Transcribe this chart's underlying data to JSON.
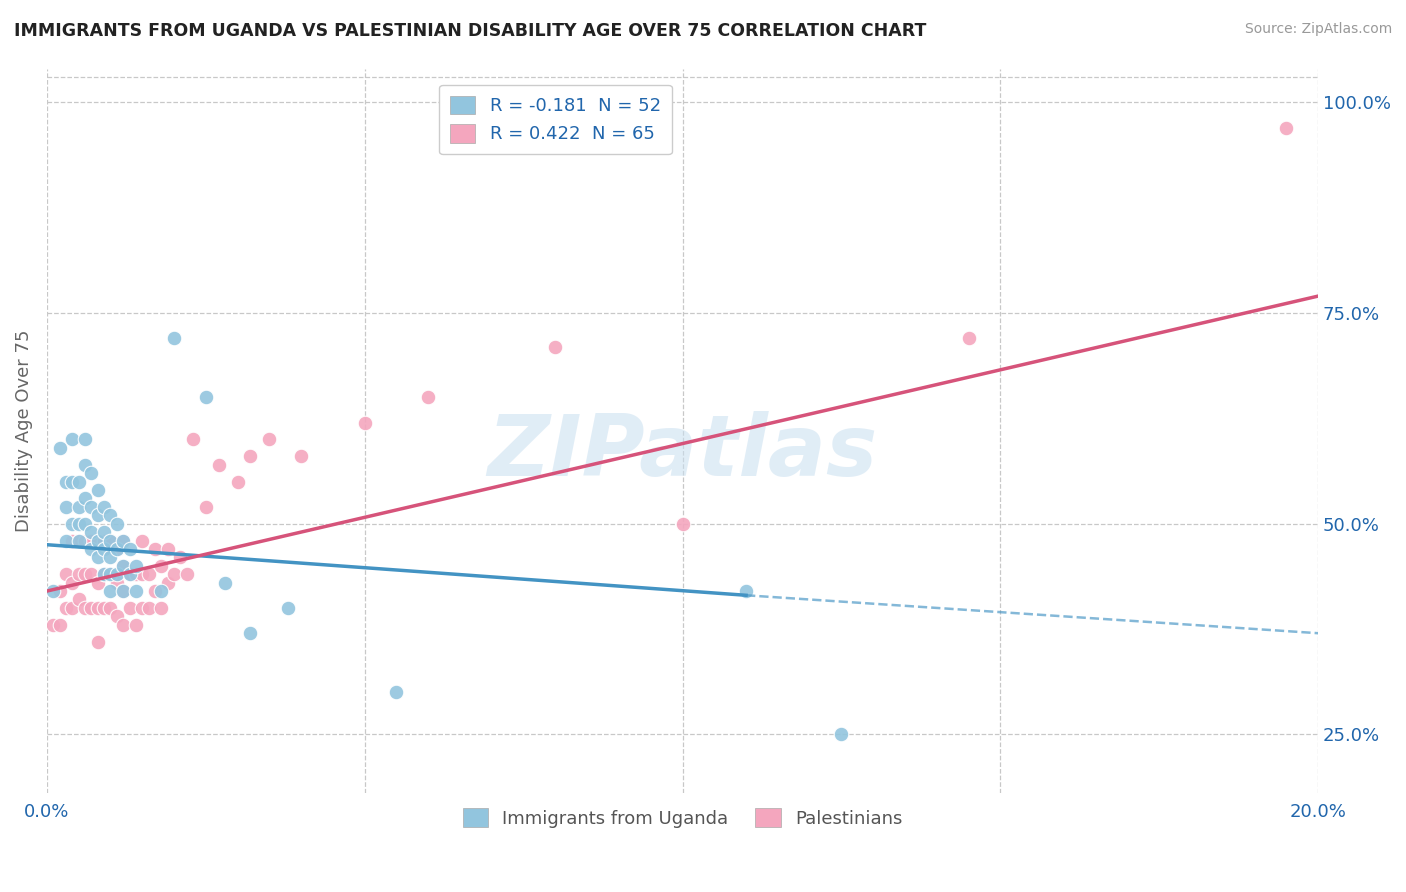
{
  "title": "IMMIGRANTS FROM UGANDA VS PALESTINIAN DISABILITY AGE OVER 75 CORRELATION CHART",
  "source": "Source: ZipAtlas.com",
  "ylabel": "Disability Age Over 75",
  "x_min": 0.0,
  "x_max": 0.2,
  "y_min": 0.18,
  "y_max": 1.04,
  "y_ticks_right": [
    0.25,
    0.5,
    0.75,
    1.0
  ],
  "y_tick_labels_right": [
    "25.0%",
    "50.0%",
    "75.0%",
    "100.0%"
  ],
  "legend1_label": "R = -0.181  N = 52",
  "legend2_label": "R = 0.422  N = 65",
  "legend_bottom1": "Immigrants from Uganda",
  "legend_bottom2": "Palestinians",
  "blue_color": "#92c5de",
  "pink_color": "#f4a6be",
  "blue_line_color": "#4393c3",
  "pink_line_color": "#d6537a",
  "watermark": "ZIPatlas",
  "background_color": "#ffffff",
  "grid_color": "#c8c8c8",
  "blue_line_x0": 0.0,
  "blue_line_y0": 0.475,
  "blue_line_x1": 0.11,
  "blue_line_y1": 0.415,
  "blue_line_x2": 0.2,
  "blue_line_y2": 0.37,
  "pink_line_x0": 0.0,
  "pink_line_y0": 0.42,
  "pink_line_x1": 0.2,
  "pink_line_y1": 0.77,
  "uganda_x": [
    0.001,
    0.002,
    0.003,
    0.003,
    0.003,
    0.004,
    0.004,
    0.004,
    0.005,
    0.005,
    0.005,
    0.005,
    0.006,
    0.006,
    0.006,
    0.006,
    0.007,
    0.007,
    0.007,
    0.007,
    0.008,
    0.008,
    0.008,
    0.008,
    0.009,
    0.009,
    0.009,
    0.009,
    0.01,
    0.01,
    0.01,
    0.01,
    0.01,
    0.011,
    0.011,
    0.011,
    0.012,
    0.012,
    0.012,
    0.013,
    0.013,
    0.014,
    0.014,
    0.018,
    0.02,
    0.025,
    0.028,
    0.032,
    0.038,
    0.055,
    0.11,
    0.125
  ],
  "uganda_y": [
    0.42,
    0.59,
    0.55,
    0.52,
    0.48,
    0.6,
    0.55,
    0.5,
    0.55,
    0.52,
    0.5,
    0.48,
    0.6,
    0.57,
    0.53,
    0.5,
    0.56,
    0.52,
    0.49,
    0.47,
    0.54,
    0.51,
    0.48,
    0.46,
    0.52,
    0.49,
    0.47,
    0.44,
    0.51,
    0.48,
    0.46,
    0.44,
    0.42,
    0.5,
    0.47,
    0.44,
    0.48,
    0.45,
    0.42,
    0.47,
    0.44,
    0.45,
    0.42,
    0.42,
    0.72,
    0.65,
    0.43,
    0.37,
    0.4,
    0.3,
    0.42,
    0.25
  ],
  "palestinians_x": [
    0.001,
    0.002,
    0.002,
    0.003,
    0.003,
    0.004,
    0.004,
    0.004,
    0.005,
    0.005,
    0.005,
    0.006,
    0.006,
    0.006,
    0.007,
    0.007,
    0.007,
    0.008,
    0.008,
    0.008,
    0.008,
    0.009,
    0.009,
    0.009,
    0.01,
    0.01,
    0.01,
    0.011,
    0.011,
    0.011,
    0.012,
    0.012,
    0.012,
    0.012,
    0.013,
    0.013,
    0.014,
    0.014,
    0.015,
    0.015,
    0.015,
    0.016,
    0.016,
    0.017,
    0.017,
    0.018,
    0.018,
    0.019,
    0.019,
    0.02,
    0.021,
    0.022,
    0.023,
    0.025,
    0.027,
    0.03,
    0.032,
    0.035,
    0.04,
    0.05,
    0.06,
    0.08,
    0.1,
    0.145,
    0.195
  ],
  "palestinians_y": [
    0.38,
    0.42,
    0.38,
    0.4,
    0.44,
    0.4,
    0.43,
    0.48,
    0.41,
    0.44,
    0.48,
    0.4,
    0.44,
    0.48,
    0.4,
    0.44,
    0.48,
    0.4,
    0.43,
    0.48,
    0.36,
    0.4,
    0.44,
    0.48,
    0.4,
    0.44,
    0.48,
    0.39,
    0.43,
    0.47,
    0.38,
    0.42,
    0.45,
    0.48,
    0.4,
    0.44,
    0.38,
    0.44,
    0.4,
    0.44,
    0.48,
    0.4,
    0.44,
    0.42,
    0.47,
    0.4,
    0.45,
    0.43,
    0.47,
    0.44,
    0.46,
    0.44,
    0.6,
    0.52,
    0.57,
    0.55,
    0.58,
    0.6,
    0.58,
    0.62,
    0.65,
    0.71,
    0.5,
    0.72,
    0.97
  ]
}
